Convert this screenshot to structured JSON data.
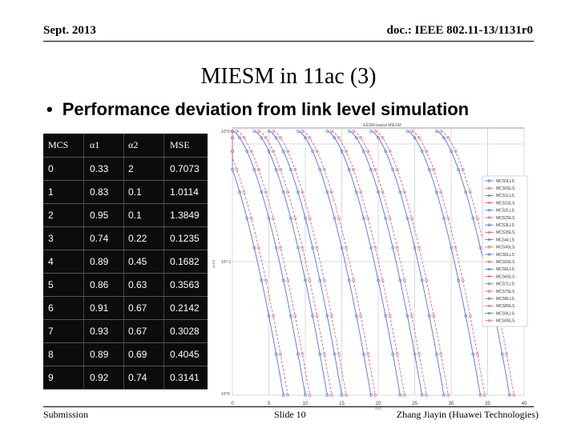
{
  "header": {
    "date": "Sept. 2013",
    "doc": "doc.: IEEE 802.11-13/1131r0"
  },
  "title": "MIESM in 11ac (3)",
  "bullet": "Performance deviation from link level simulation",
  "table": {
    "headers": [
      "MCS",
      "α1",
      "α2",
      "MSE"
    ],
    "rows": [
      [
        "0",
        "0.33",
        "2",
        "0.7073"
      ],
      [
        "1",
        "0.83",
        "0.1",
        "1.0114"
      ],
      [
        "2",
        "0.95",
        "0.1",
        "1.3849"
      ],
      [
        "3",
        "0.74",
        "0.22",
        "0.1235"
      ],
      [
        "4",
        "0.89",
        "0.45",
        "0.1682"
      ],
      [
        "5",
        "0.86",
        "0.63",
        "0.3563"
      ],
      [
        "6",
        "0.91",
        "0.67",
        "0.2142"
      ],
      [
        "7",
        "0.93",
        "0.67",
        "0.3028"
      ],
      [
        "8",
        "0.89",
        "0.69",
        "0.4045"
      ],
      [
        "9",
        "0.92",
        "0.74",
        "0.3141"
      ]
    ]
  },
  "chart_data": {
    "type": "line",
    "title": "EESM-based MIESM",
    "xlabel": "SNR",
    "ylabel": "BLER",
    "xlim": [
      0,
      40
    ],
    "x_ticks": [
      "0",
      "5",
      "10",
      "15",
      "20",
      "25",
      "30",
      "35",
      "40"
    ],
    "y_ticks": [
      "10^0",
      "10^-1",
      "10^0"
    ],
    "legend": [
      "MCS0LLS",
      "MCS0SLS",
      "MCS1LLS",
      "MCS1SLS",
      "MCS2LLS",
      "MCS2SLS",
      "MCS3LLS",
      "MCS3SLS",
      "MCS4LLS",
      "MCS4SLS",
      "MCS5LLS",
      "MCS5SLS",
      "MCS6LLS",
      "MCS6SLS",
      "MCS7LLS",
      "MCS7SLS",
      "MCS8LLS",
      "MCS8SLS",
      "MCS9LLS",
      "MCS9SLS"
    ],
    "curve_snr_at_10pct": [
      3,
      6,
      9,
      11,
      15,
      19,
      22,
      25,
      30,
      34
    ],
    "colors": {
      "lls": "#5a6fd6",
      "sls": "#e0607a"
    }
  },
  "footer": {
    "left": "Submission",
    "center": "Slide 10",
    "right": "Zhang Jiayin (Huawei Technologies)"
  }
}
